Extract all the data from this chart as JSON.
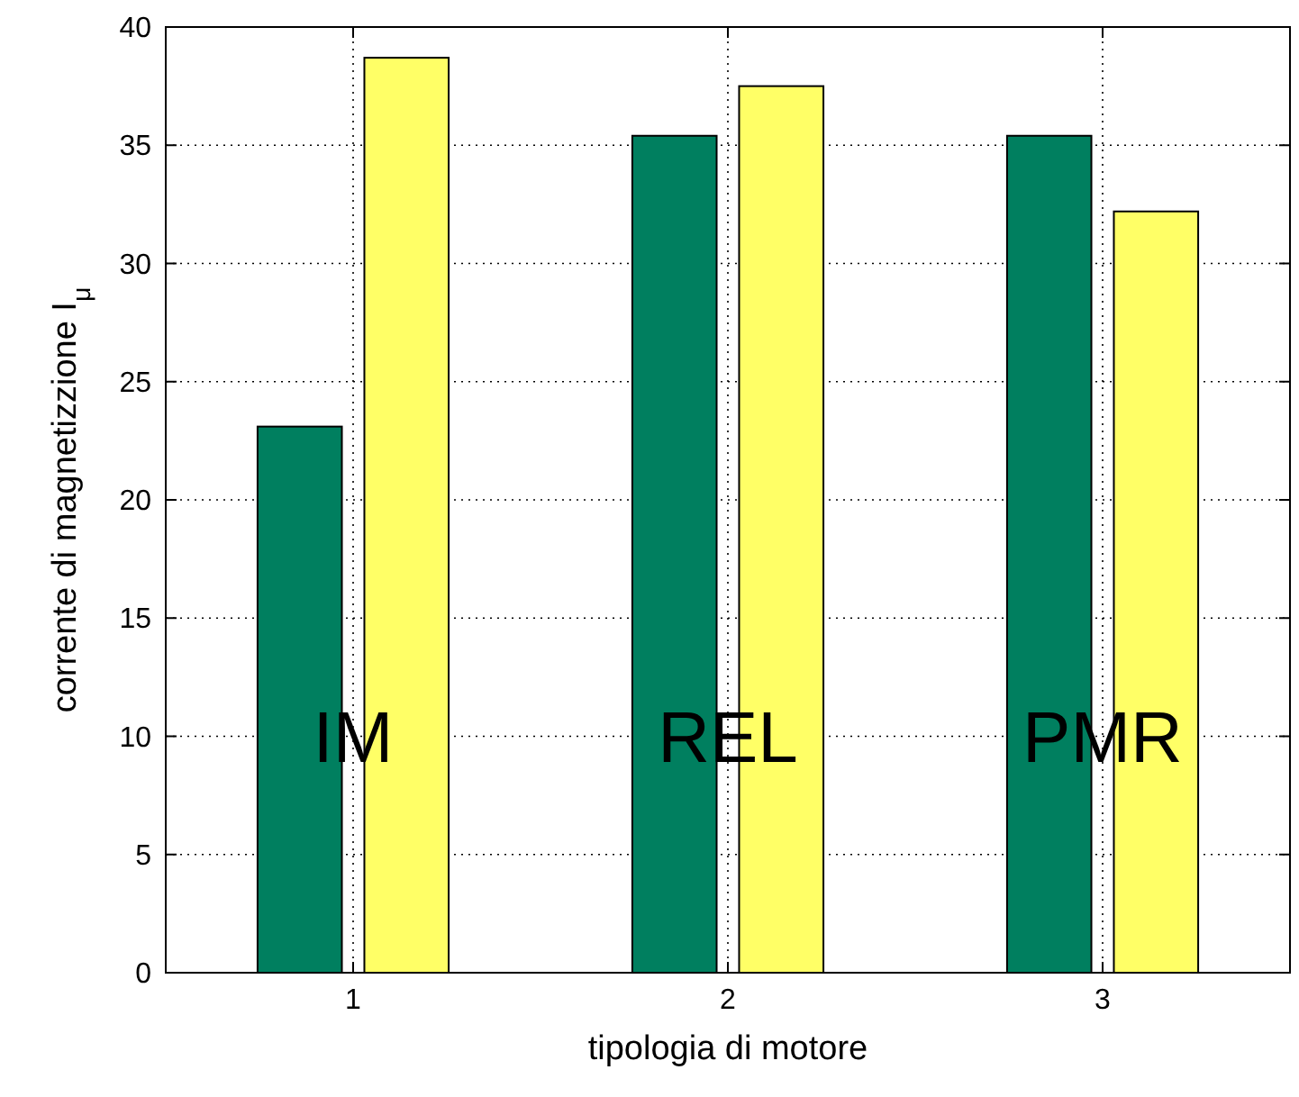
{
  "chart_data": {
    "type": "bar",
    "xlabel": "tipologia di motore",
    "ylabel": "corrente di magnetizzione I$_{μ}$",
    "x": [
      1,
      2,
      3
    ],
    "xlim": [
      0.5,
      3.5
    ],
    "xticks": [
      1,
      2,
      3
    ],
    "ylim": [
      0,
      40
    ],
    "yticks": [
      0,
      5,
      10,
      15,
      20,
      25,
      30,
      35,
      40
    ],
    "grid": true,
    "series": [
      {
        "color": "#007f5f",
        "values": [
          23.1,
          35.4,
          35.4
        ]
      },
      {
        "color": "#ffff66",
        "values": [
          38.7,
          37.5,
          32.2
        ]
      }
    ],
    "annotations": [
      "IM",
      "REL",
      "PMR"
    ]
  }
}
